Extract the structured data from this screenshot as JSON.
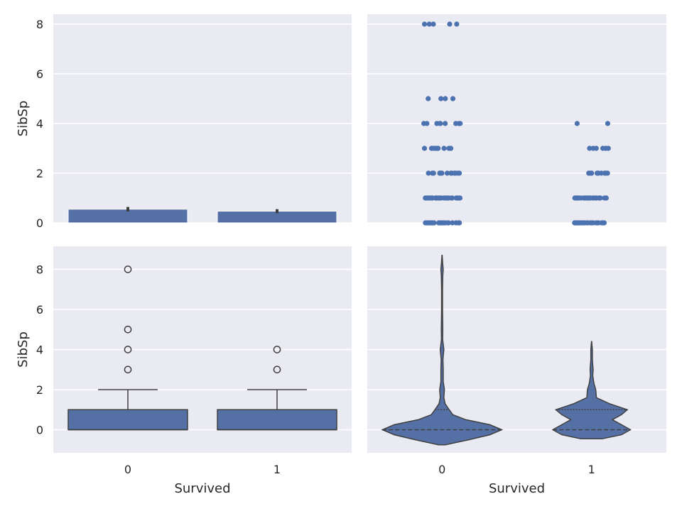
{
  "chart_data": [
    {
      "type": "bar",
      "panel": "top-left",
      "categories": [
        "0",
        "1"
      ],
      "values": [
        0.55,
        0.47
      ],
      "error": [
        [
          0.46,
          0.64
        ],
        [
          0.39,
          0.55
        ]
      ],
      "xlabel": "",
      "ylabel": "SibSp",
      "ylim": [
        0,
        8.4
      ],
      "yticks": [
        "0",
        "2",
        "4",
        "6",
        "8"
      ],
      "grid": true
    },
    {
      "type": "scatter",
      "panel": "top-right",
      "categories": [
        "0",
        "1"
      ],
      "values": [
        [
          0,
          1,
          2,
          3,
          4,
          5,
          8
        ],
        [
          0,
          1,
          2,
          3,
          4
        ]
      ],
      "xlabel": "",
      "ylabel": "",
      "ylim": [
        0,
        8.4
      ],
      "grid": true
    },
    {
      "type": "box",
      "panel": "bottom-left",
      "categories": [
        "0",
        "1"
      ],
      "boxes": [
        {
          "q1": 0,
          "median": 0,
          "q3": 1,
          "whisker_low": 0,
          "whisker_high": 2,
          "outliers": [
            3,
            4,
            5,
            8
          ]
        },
        {
          "q1": 0,
          "median": 0,
          "q3": 1,
          "whisker_low": 0,
          "whisker_high": 2,
          "outliers": [
            3,
            4
          ]
        }
      ],
      "xlabel": "Survived",
      "ylabel": "SibSp",
      "ylim": [
        -1.15,
        9.15
      ],
      "xticks": [
        "0",
        "1"
      ],
      "yticks": [
        "0",
        "2",
        "4",
        "6",
        "8"
      ],
      "grid": true
    },
    {
      "type": "violin",
      "panel": "bottom-right",
      "categories": [
        "0",
        "1"
      ],
      "violins": [
        {
          "min": -0.75,
          "max": 8.7,
          "q1": 0,
          "median": 0,
          "q3": 1
        },
        {
          "min": -0.45,
          "max": 4.4,
          "q1": 0,
          "median": 0,
          "q3": 1
        }
      ],
      "xlabel": "Survived",
      "ylabel": "",
      "ylim": [
        -1.15,
        9.15
      ],
      "xticks": [
        "0",
        "1"
      ],
      "grid": true
    }
  ],
  "colors": {
    "face": "#eaeaf2",
    "grid": "#ffffff",
    "fill": "#5470a5",
    "edge": "#404040",
    "point": "#4c72b0"
  }
}
